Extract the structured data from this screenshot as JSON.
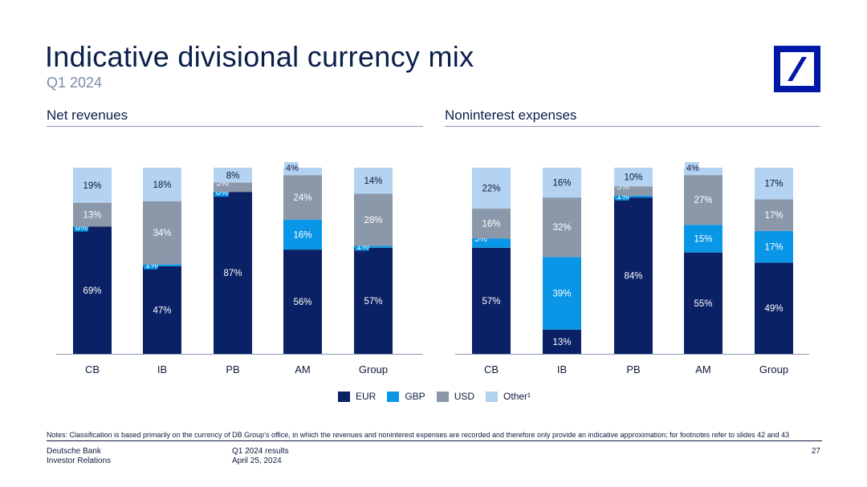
{
  "header": {
    "title": "Indicative divisional currency mix",
    "subtitle": "Q1 2024"
  },
  "colors": {
    "EUR": "#0a2265",
    "GBP": "#0a96e6",
    "USD": "#8b98aa",
    "Other": "#b4d2f1"
  },
  "legend": [
    "EUR",
    "GBP",
    "USD",
    "Other¹"
  ],
  "chart_data": [
    {
      "type": "bar",
      "stacked": true,
      "title": "Net revenues",
      "categories": [
        "CB",
        "IB",
        "PB",
        "AM",
        "Group"
      ],
      "series": [
        {
          "name": "EUR",
          "values": [
            69,
            47,
            87,
            56,
            57
          ]
        },
        {
          "name": "GBP",
          "values": [
            0,
            1,
            0,
            16,
            1
          ]
        },
        {
          "name": "USD",
          "values": [
            13,
            34,
            5,
            24,
            28
          ]
        },
        {
          "name": "Other¹",
          "values": [
            19,
            18,
            8,
            4,
            14
          ]
        }
      ],
      "ylim": [
        0,
        100
      ]
    },
    {
      "type": "bar",
      "stacked": true,
      "title": "Noninterest expenses",
      "categories": [
        "CB",
        "IB",
        "PB",
        "AM",
        "Group"
      ],
      "series": [
        {
          "name": "EUR",
          "values": [
            57,
            13,
            84,
            55,
            49
          ]
        },
        {
          "name": "GBP",
          "values": [
            5,
            39,
            1,
            15,
            17
          ]
        },
        {
          "name": "USD",
          "values": [
            16,
            32,
            5,
            27,
            17
          ]
        },
        {
          "name": "Other¹",
          "values": [
            22,
            16,
            10,
            4,
            17
          ]
        }
      ],
      "ylim": [
        0,
        100
      ]
    }
  ],
  "notes": "Notes: Classification is based primarily on the currency of DB Group’s office, in which the revenues and noninterest expenses are recorded and therefore only provide an indicative approximation; for footnotes refer to slides 42 and 43",
  "footer": {
    "company": "Deutsche Bank",
    "department": "Investor Relations",
    "report": "Q1 2024 results",
    "date": "April 25, 2024",
    "page": "27"
  }
}
